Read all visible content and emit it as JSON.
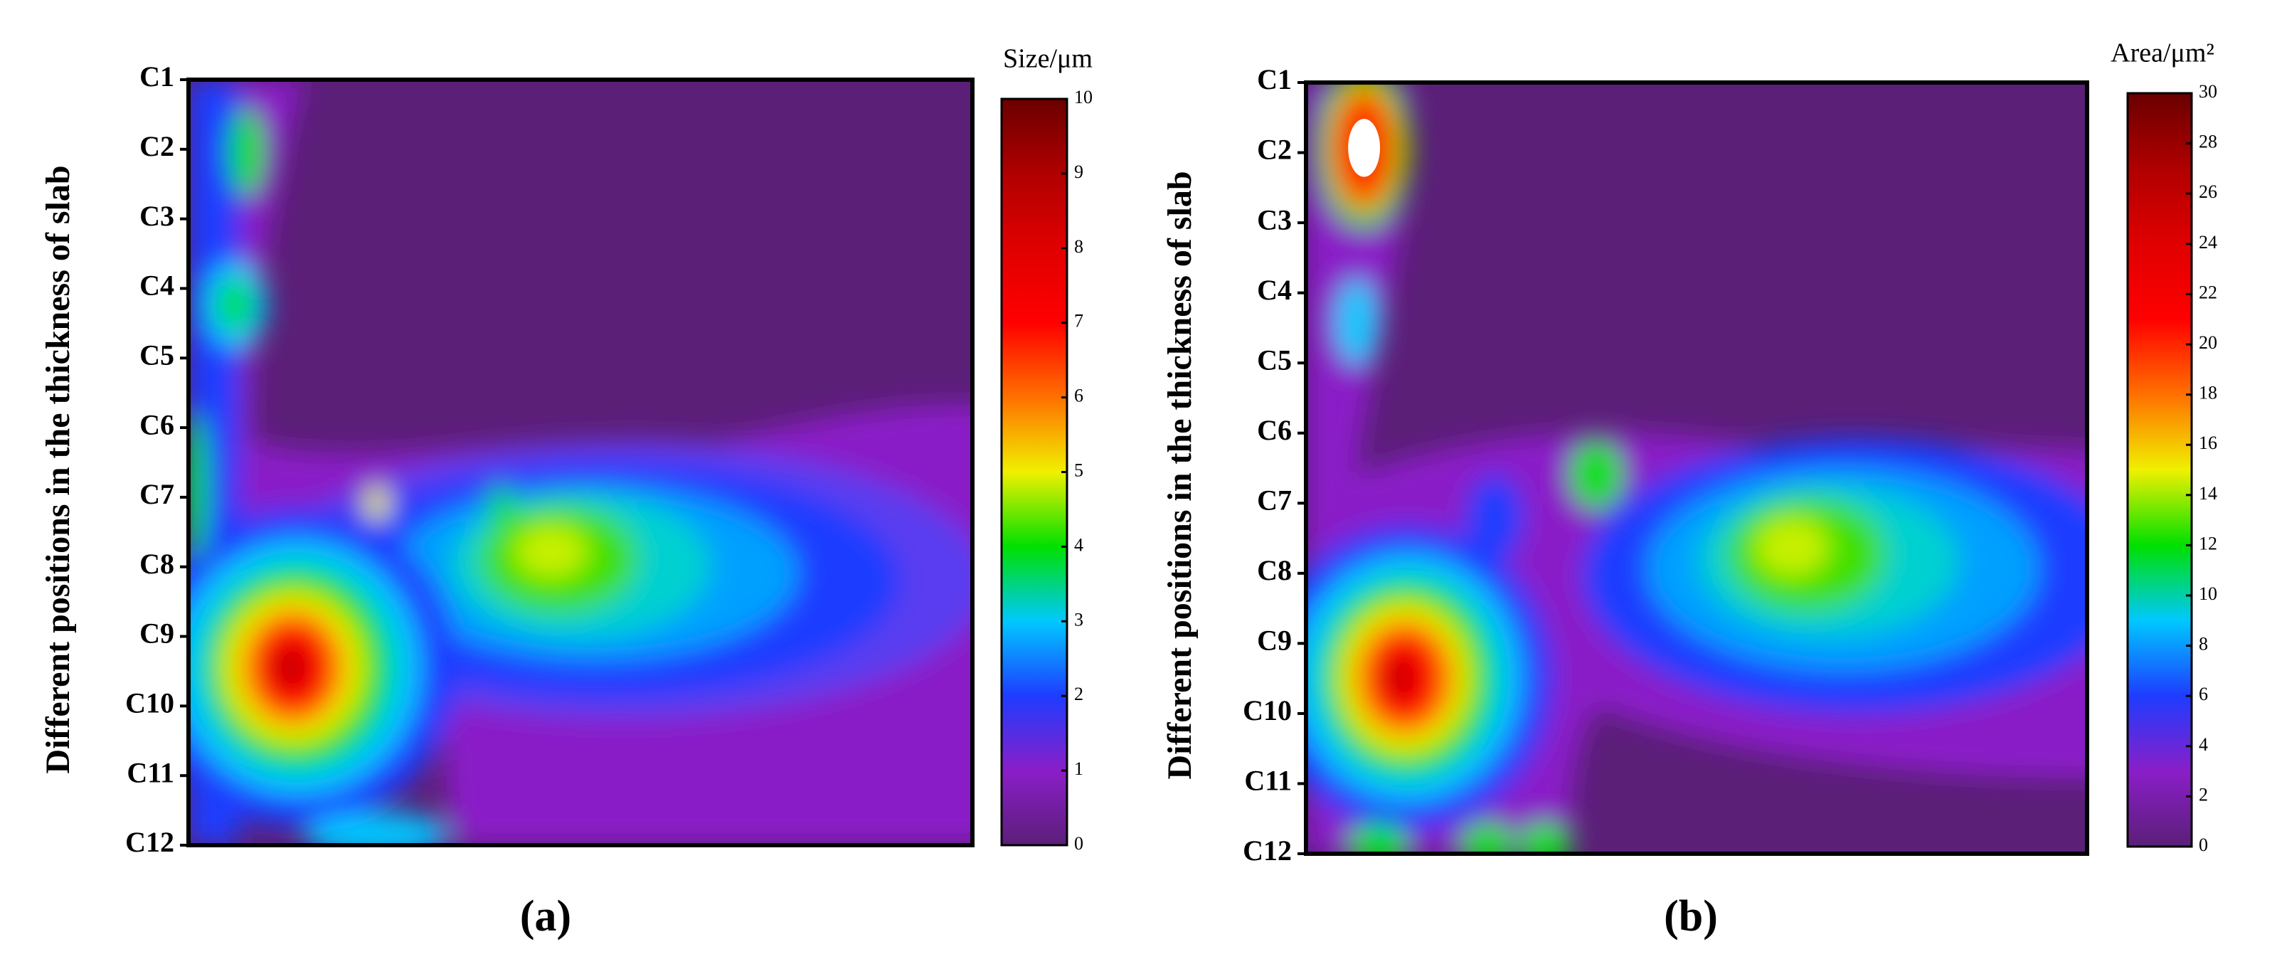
{
  "chart_data": [
    {
      "type": "contour",
      "y_label": "Different positions in the thickness of slab",
      "categories": [
        "C1",
        "C2",
        "C3",
        "C4",
        "C5",
        "C6",
        "C7",
        "C8",
        "C9",
        "C10",
        "C11",
        "C12"
      ],
      "colorbar_label": "Size/μm",
      "zlim": [
        0,
        10
      ],
      "zticks": [
        0,
        1,
        2,
        3,
        4,
        5,
        6,
        7,
        8,
        9,
        10
      ],
      "colormap": [
        "#5b1f78",
        "#8a1ec8",
        "#1e3cff",
        "#00c8ff",
        "#00e000",
        "#f0f000",
        "#ff7000",
        "#ff0000",
        "#e00000",
        "#b00000",
        "#6a0000"
      ],
      "panel_label": "(a)"
    },
    {
      "type": "contour",
      "y_label": "Different positions in the thickness of slab",
      "categories": [
        "C1",
        "C2",
        "C3",
        "C4",
        "C5",
        "C6",
        "C7",
        "C8",
        "C9",
        "C10",
        "C11",
        "C12"
      ],
      "colorbar_label": "Area/μm²",
      "zlim": [
        0,
        30
      ],
      "zticks": [
        0,
        2,
        4,
        6,
        8,
        10,
        12,
        14,
        16,
        18,
        20,
        22,
        24,
        26,
        28,
        30
      ],
      "colormap": [
        "#5b1f78",
        "#8a1ec8",
        "#1e3cff",
        "#00c8ff",
        "#00e000",
        "#f0f000",
        "#ff7000",
        "#ff0000",
        "#e00000",
        "#b00000",
        "#6a0000"
      ],
      "panel_label": "(b)"
    }
  ]
}
